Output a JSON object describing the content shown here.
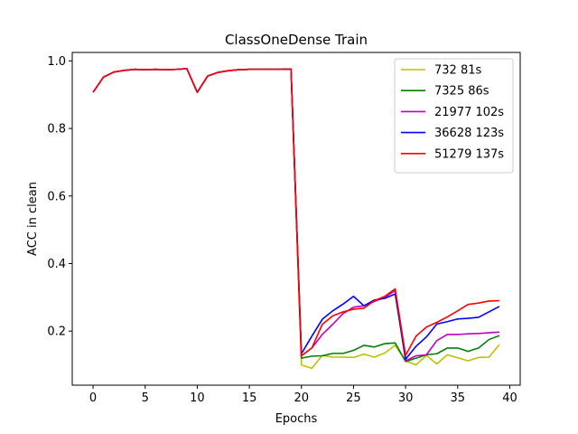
{
  "chart_data": {
    "type": "line",
    "title": "ClassOneDense Train",
    "xlabel": "Epochs",
    "ylabel": "ACC in clean",
    "xlim": [
      -2,
      41
    ],
    "ylim": [
      0.04,
      1.025
    ],
    "xticks": [
      0,
      5,
      10,
      15,
      20,
      25,
      30,
      35,
      40
    ],
    "yticks": [
      0.2,
      0.4,
      0.6,
      0.8,
      1.0
    ],
    "ytick_labels": [
      "0.2",
      "0.4",
      "0.6",
      "0.8",
      "1.0"
    ],
    "grid": false,
    "legend_position": "top-right",
    "x": [
      0,
      1,
      2,
      3,
      4,
      5,
      6,
      7,
      8,
      9,
      10,
      11,
      12,
      13,
      14,
      15,
      16,
      17,
      18,
      19,
      20,
      21,
      22,
      23,
      24,
      25,
      26,
      27,
      28,
      29,
      30,
      31,
      32,
      33,
      34,
      35,
      36,
      37,
      38,
      39
    ],
    "series": [
      {
        "name": "732 81s",
        "color": "#bfbf00",
        "values": [
          0.907,
          0.952,
          0.967,
          0.972,
          0.975,
          0.974,
          0.975,
          0.974,
          0.975,
          0.977,
          0.907,
          0.955,
          0.966,
          0.971,
          0.974,
          0.975,
          0.975,
          0.975,
          0.975,
          0.976,
          0.1,
          0.09,
          0.128,
          0.123,
          0.123,
          0.122,
          0.132,
          0.123,
          0.135,
          0.158,
          0.112,
          0.1,
          0.128,
          0.103,
          0.13,
          0.121,
          0.112,
          0.122,
          0.123,
          0.16
        ]
      },
      {
        "name": "7325 86s",
        "color": "#008000",
        "values": [
          0.907,
          0.952,
          0.967,
          0.972,
          0.975,
          0.974,
          0.975,
          0.974,
          0.975,
          0.977,
          0.907,
          0.955,
          0.966,
          0.971,
          0.974,
          0.975,
          0.975,
          0.975,
          0.975,
          0.976,
          0.12,
          0.126,
          0.127,
          0.134,
          0.134,
          0.143,
          0.158,
          0.153,
          0.163,
          0.165,
          0.11,
          0.12,
          0.13,
          0.133,
          0.15,
          0.15,
          0.14,
          0.15,
          0.175,
          0.187
        ]
      },
      {
        "name": "21977 102s",
        "color": "#bf00bf",
        "values": [
          0.907,
          0.952,
          0.967,
          0.972,
          0.975,
          0.974,
          0.975,
          0.974,
          0.975,
          0.977,
          0.907,
          0.955,
          0.966,
          0.971,
          0.974,
          0.975,
          0.975,
          0.975,
          0.975,
          0.976,
          0.127,
          0.15,
          0.19,
          0.22,
          0.252,
          0.271,
          0.275,
          0.288,
          0.3,
          0.32,
          0.112,
          0.127,
          0.13,
          0.172,
          0.19,
          0.19,
          0.192,
          0.193,
          0.195,
          0.197
        ]
      },
      {
        "name": "36628 123s",
        "color": "#0000ff",
        "values": [
          0.907,
          0.952,
          0.967,
          0.972,
          0.975,
          0.974,
          0.975,
          0.974,
          0.975,
          0.977,
          0.907,
          0.955,
          0.966,
          0.971,
          0.974,
          0.975,
          0.975,
          0.975,
          0.975,
          0.976,
          0.133,
          0.185,
          0.235,
          0.26,
          0.28,
          0.303,
          0.275,
          0.292,
          0.297,
          0.31,
          0.117,
          0.155,
          0.183,
          0.221,
          0.228,
          0.236,
          0.238,
          0.241,
          0.257,
          0.273
        ]
      },
      {
        "name": "51279 137s",
        "color": "#ff0000",
        "values": [
          0.907,
          0.952,
          0.967,
          0.972,
          0.975,
          0.974,
          0.975,
          0.974,
          0.975,
          0.977,
          0.907,
          0.955,
          0.966,
          0.971,
          0.974,
          0.975,
          0.975,
          0.975,
          0.975,
          0.976,
          0.127,
          0.15,
          0.22,
          0.245,
          0.257,
          0.265,
          0.268,
          0.29,
          0.303,
          0.325,
          0.128,
          0.185,
          0.212,
          0.226,
          0.242,
          0.26,
          0.279,
          0.283,
          0.289,
          0.29
        ]
      }
    ]
  }
}
